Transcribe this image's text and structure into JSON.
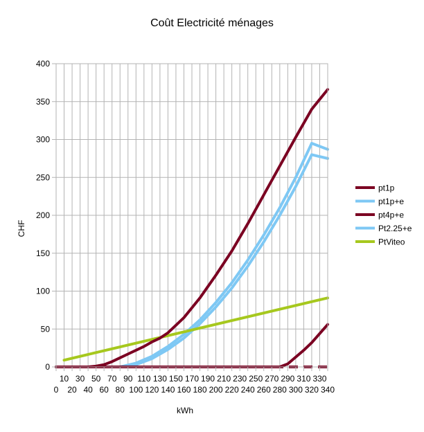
{
  "chart_data": {
    "type": "line",
    "title": "Coût Electricité ménages",
    "xlabel": "kWh",
    "ylabel": "CHF",
    "xlim": [
      0,
      340
    ],
    "ylim": [
      0,
      400
    ],
    "y_ticks": [
      0,
      50,
      100,
      150,
      200,
      250,
      300,
      350,
      400
    ],
    "x_ticks_row1": [
      10,
      30,
      50,
      70,
      90,
      110,
      130,
      150,
      170,
      190,
      210,
      230,
      250,
      270,
      290,
      310,
      330
    ],
    "x_ticks_row2": [
      0,
      20,
      40,
      60,
      80,
      100,
      120,
      140,
      160,
      180,
      200,
      220,
      240,
      260,
      280,
      300,
      320,
      340
    ],
    "grid": "horizontal and vertical major gridlines",
    "legend_position": "right",
    "series": [
      {
        "name": "pt1p",
        "color": "#7b0022",
        "style": "dashed",
        "x": [
          0,
          340
        ],
        "y": [
          0,
          0
        ]
      },
      {
        "name": "pt1p+e",
        "color": "#7ec8f4",
        "style": "solid",
        "x": [
          0,
          80,
          100,
          120,
          140,
          160,
          180,
          200,
          220,
          240,
          260,
          280,
          300,
          320,
          340
        ],
        "y": [
          0,
          0,
          5,
          14,
          27,
          43,
          62,
          85,
          111,
          141,
          174,
          210,
          250,
          295,
          287
        ]
      },
      {
        "name": "pt4p+e",
        "color": "#7b0022",
        "style": "solid",
        "x": [
          0,
          280,
          290,
          300,
          310,
          320,
          330,
          340
        ],
        "y": [
          0,
          0,
          4,
          13,
          22,
          32,
          44,
          56
        ]
      },
      {
        "name": "Pt2.25+e",
        "color": "#7ec8f4",
        "style": "solid",
        "x": [
          0,
          80,
          100,
          120,
          140,
          160,
          180,
          200,
          220,
          240,
          260,
          280,
          300,
          320,
          340
        ],
        "y": [
          0,
          0,
          3,
          11,
          23,
          38,
          57,
          79,
          104,
          133,
          165,
          200,
          238,
          280,
          275
        ]
      },
      {
        "name": "PtViteo",
        "color": "#a6c81e",
        "style": "solid",
        "x": [
          10,
          340
        ],
        "y": [
          9,
          91
        ]
      },
      {
        "name": "",
        "color": "#7b0022",
        "style": "solid",
        "x": [
          0,
          40,
          50,
          60,
          70,
          80,
          90,
          100,
          110,
          120,
          130,
          140,
          150,
          160,
          170,
          180,
          190,
          200,
          220,
          240,
          260,
          280,
          300,
          320,
          340
        ],
        "y": [
          0,
          0,
          1,
          3,
          7,
          12,
          17,
          22,
          27,
          33,
          38,
          45,
          55,
          65,
          78,
          91,
          106,
          121,
          153,
          189,
          227,
          265,
          303,
          340,
          366
        ]
      }
    ]
  }
}
